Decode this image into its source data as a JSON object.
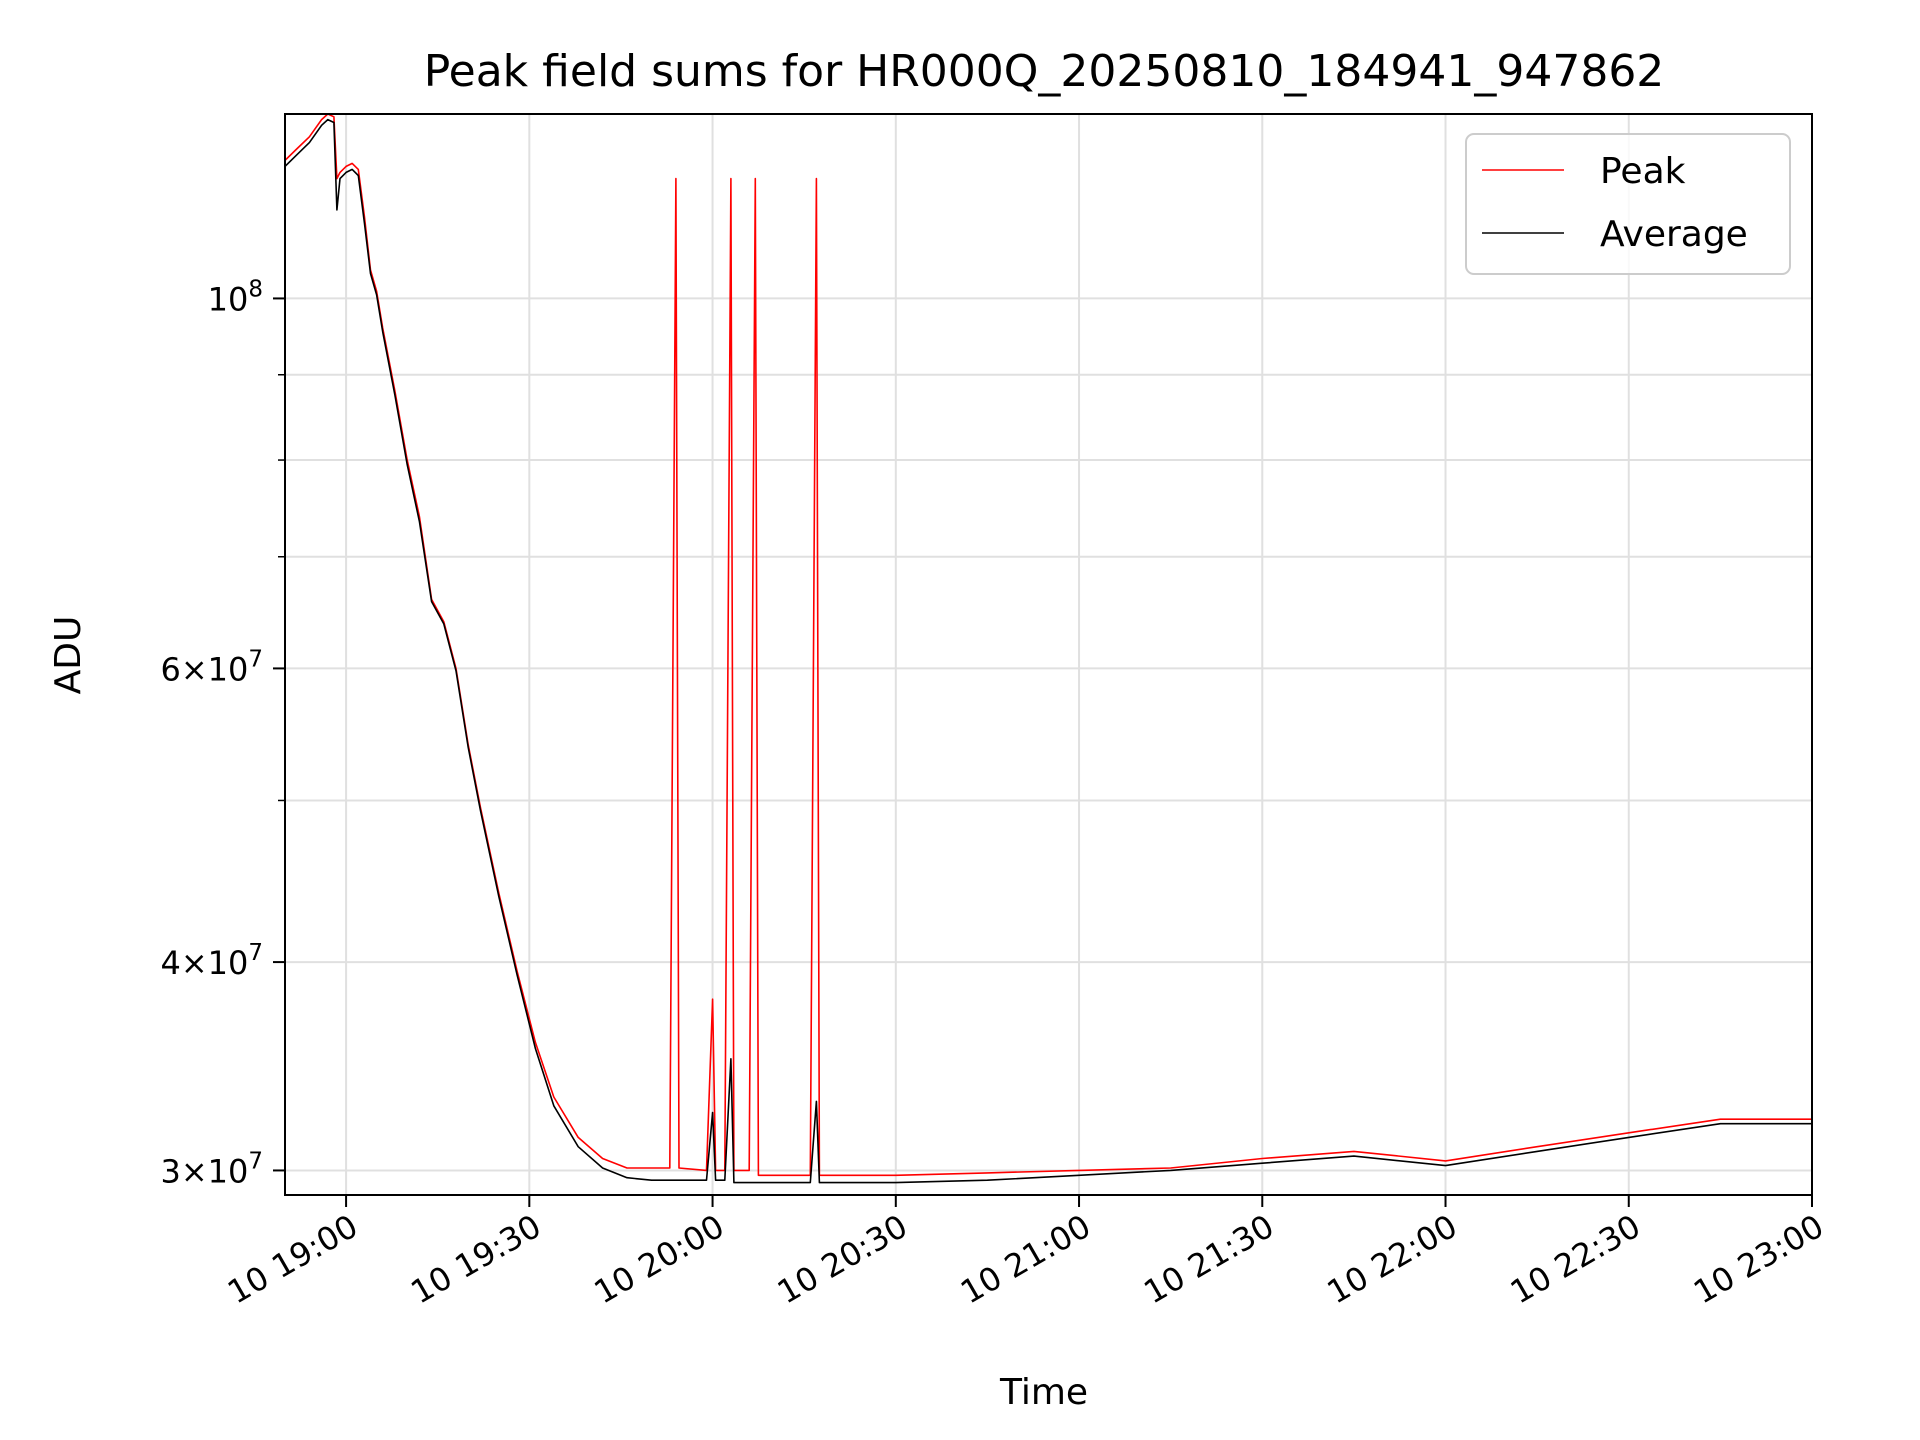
{
  "chart_data": {
    "type": "line",
    "title": "Peak field sums for HR000Q_20250810_184941_947862",
    "xlabel": "Time",
    "ylabel": "ADU",
    "x_axis": "time",
    "y_scale": "log",
    "xlim": [
      "2025-08-10 18:50",
      "2025-08-10 23:00"
    ],
    "ylim": [
      29000000,
      129000000
    ],
    "grid": true,
    "legend_position": "top-right",
    "x_ticks": [
      {
        "value": "2025-08-10 19:00",
        "label": "10 19:00"
      },
      {
        "value": "2025-08-10 19:30",
        "label": "10 19:30"
      },
      {
        "value": "2025-08-10 20:00",
        "label": "10 20:00"
      },
      {
        "value": "2025-08-10 20:30",
        "label": "10 20:30"
      },
      {
        "value": "2025-08-10 21:00",
        "label": "10 21:00"
      },
      {
        "value": "2025-08-10 21:30",
        "label": "10 21:30"
      },
      {
        "value": "2025-08-10 22:00",
        "label": "10 22:00"
      },
      {
        "value": "2025-08-10 22:30",
        "label": "10 22:30"
      },
      {
        "value": "2025-08-10 23:00",
        "label": "10 23:00"
      }
    ],
    "y_ticks": [
      {
        "value": 30000000,
        "mantissa": "3",
        "base": "10",
        "exp": "7"
      },
      {
        "value": 40000000,
        "mantissa": "4",
        "base": "10",
        "exp": "7"
      },
      {
        "value": 60000000,
        "mantissa": "6",
        "base": "10",
        "exp": "7"
      },
      {
        "value": 100000000,
        "mantissa": "",
        "base": "10",
        "exp": "8"
      }
    ],
    "y_minor_ticks": [
      50000000,
      70000000,
      80000000,
      90000000
    ],
    "series": [
      {
        "name": "Peak",
        "color": "#ff0000",
        "points": [
          [
            "2025-08-10 18:50",
            121000000
          ],
          [
            "2025-08-10 18:52",
            123000000
          ],
          [
            "2025-08-10 18:54",
            125000000
          ],
          [
            "2025-08-10 18:56",
            128000000
          ],
          [
            "2025-08-10 18:57",
            129000000
          ],
          [
            "2025-08-10 18:58",
            128500000
          ],
          [
            "2025-08-10 18:58:30",
            118000000
          ],
          [
            "2025-08-10 18:59",
            119000000
          ],
          [
            "2025-08-10 19:00",
            120000000
          ],
          [
            "2025-08-10 19:01",
            120500000
          ],
          [
            "2025-08-10 19:02",
            119500000
          ],
          [
            "2025-08-10 19:03",
            112000000
          ],
          [
            "2025-08-10 19:04",
            104000000
          ],
          [
            "2025-08-10 19:05",
            101000000
          ],
          [
            "2025-08-10 19:06",
            96000000
          ],
          [
            "2025-08-10 19:08",
            88000000
          ],
          [
            "2025-08-10 19:10",
            80000000
          ],
          [
            "2025-08-10 19:12",
            74000000
          ],
          [
            "2025-08-10 19:14",
            66000000
          ],
          [
            "2025-08-10 19:16",
            64000000
          ],
          [
            "2025-08-10 19:18",
            60000000
          ],
          [
            "2025-08-10 19:20",
            54000000
          ],
          [
            "2025-08-10 19:22",
            49500000
          ],
          [
            "2025-08-10 19:25",
            44000000
          ],
          [
            "2025-08-10 19:28",
            39500000
          ],
          [
            "2025-08-10 19:31",
            35800000
          ],
          [
            "2025-08-10 19:34",
            33200000
          ],
          [
            "2025-08-10 19:38",
            31400000
          ],
          [
            "2025-08-10 19:42",
            30500000
          ],
          [
            "2025-08-10 19:46",
            30100000
          ],
          [
            "2025-08-10 19:50",
            30100000
          ],
          [
            "2025-08-10 19:53",
            30100000
          ],
          [
            "2025-08-10 19:54",
            118000000
          ],
          [
            "2025-08-10 19:54:30",
            30100000
          ],
          [
            "2025-08-10 19:59",
            30000000
          ],
          [
            "2025-08-10 20:00",
            38000000
          ],
          [
            "2025-08-10 20:00:30",
            30000000
          ],
          [
            "2025-08-10 20:02",
            30000000
          ],
          [
            "2025-08-10 20:03",
            118000000
          ],
          [
            "2025-08-10 20:03:30",
            30000000
          ],
          [
            "2025-08-10 20:06",
            30000000
          ],
          [
            "2025-08-10 20:07",
            118000000
          ],
          [
            "2025-08-10 20:07:30",
            29800000
          ],
          [
            "2025-08-10 20:16",
            29800000
          ],
          [
            "2025-08-10 20:17",
            118000000
          ],
          [
            "2025-08-10 20:17:30",
            29800000
          ],
          [
            "2025-08-10 20:30",
            29800000
          ],
          [
            "2025-08-10 20:45",
            29900000
          ],
          [
            "2025-08-10 21:00",
            30000000
          ],
          [
            "2025-08-10 21:15",
            30100000
          ],
          [
            "2025-08-10 21:30",
            30500000
          ],
          [
            "2025-08-10 21:45",
            30800000
          ],
          [
            "2025-08-10 22:00",
            30400000
          ],
          [
            "2025-08-10 22:15",
            31000000
          ],
          [
            "2025-08-10 22:30",
            31600000
          ],
          [
            "2025-08-10 22:45",
            32200000
          ],
          [
            "2025-08-10 23:00",
            32200000
          ]
        ]
      },
      {
        "name": "Average",
        "color": "#000000",
        "points": [
          [
            "2025-08-10 18:50",
            120000000
          ],
          [
            "2025-08-10 18:52",
            122000000
          ],
          [
            "2025-08-10 18:54",
            124000000
          ],
          [
            "2025-08-10 18:56",
            127000000
          ],
          [
            "2025-08-10 18:57",
            128000000
          ],
          [
            "2025-08-10 18:58",
            127500000
          ],
          [
            "2025-08-10 18:58:30",
            113000000
          ],
          [
            "2025-08-10 18:59",
            118000000
          ],
          [
            "2025-08-10 19:00",
            119000000
          ],
          [
            "2025-08-10 19:01",
            119500000
          ],
          [
            "2025-08-10 19:02",
            118500000
          ],
          [
            "2025-08-10 19:03",
            111000000
          ],
          [
            "2025-08-10 19:04",
            103500000
          ],
          [
            "2025-08-10 19:05",
            100500000
          ],
          [
            "2025-08-10 19:06",
            95500000
          ],
          [
            "2025-08-10 19:08",
            87500000
          ],
          [
            "2025-08-10 19:10",
            79500000
          ],
          [
            "2025-08-10 19:12",
            73500000
          ],
          [
            "2025-08-10 19:14",
            65800000
          ],
          [
            "2025-08-10 19:16",
            63800000
          ],
          [
            "2025-08-10 19:18",
            59800000
          ],
          [
            "2025-08-10 19:20",
            53800000
          ],
          [
            "2025-08-10 19:22",
            49300000
          ],
          [
            "2025-08-10 19:25",
            43800000
          ],
          [
            "2025-08-10 19:28",
            39300000
          ],
          [
            "2025-08-10 19:31",
            35500000
          ],
          [
            "2025-08-10 19:34",
            32800000
          ],
          [
            "2025-08-10 19:38",
            31000000
          ],
          [
            "2025-08-10 19:42",
            30100000
          ],
          [
            "2025-08-10 19:46",
            29700000
          ],
          [
            "2025-08-10 19:50",
            29600000
          ],
          [
            "2025-08-10 19:54",
            29600000
          ],
          [
            "2025-08-10 19:59",
            29600000
          ],
          [
            "2025-08-10 20:00",
            32500000
          ],
          [
            "2025-08-10 20:00:30",
            29600000
          ],
          [
            "2025-08-10 20:02",
            29600000
          ],
          [
            "2025-08-10 20:03",
            35000000
          ],
          [
            "2025-08-10 20:03:30",
            29500000
          ],
          [
            "2025-08-10 20:16",
            29500000
          ],
          [
            "2025-08-10 20:17",
            33000000
          ],
          [
            "2025-08-10 20:17:30",
            29500000
          ],
          [
            "2025-08-10 20:30",
            29500000
          ],
          [
            "2025-08-10 20:45",
            29600000
          ],
          [
            "2025-08-10 21:00",
            29800000
          ],
          [
            "2025-08-10 21:15",
            30000000
          ],
          [
            "2025-08-10 21:30",
            30300000
          ],
          [
            "2025-08-10 21:45",
            30600000
          ],
          [
            "2025-08-10 22:00",
            30200000
          ],
          [
            "2025-08-10 22:15",
            30800000
          ],
          [
            "2025-08-10 22:30",
            31400000
          ],
          [
            "2025-08-10 22:45",
            32000000
          ],
          [
            "2025-08-10 23:00",
            32000000
          ]
        ]
      }
    ]
  }
}
